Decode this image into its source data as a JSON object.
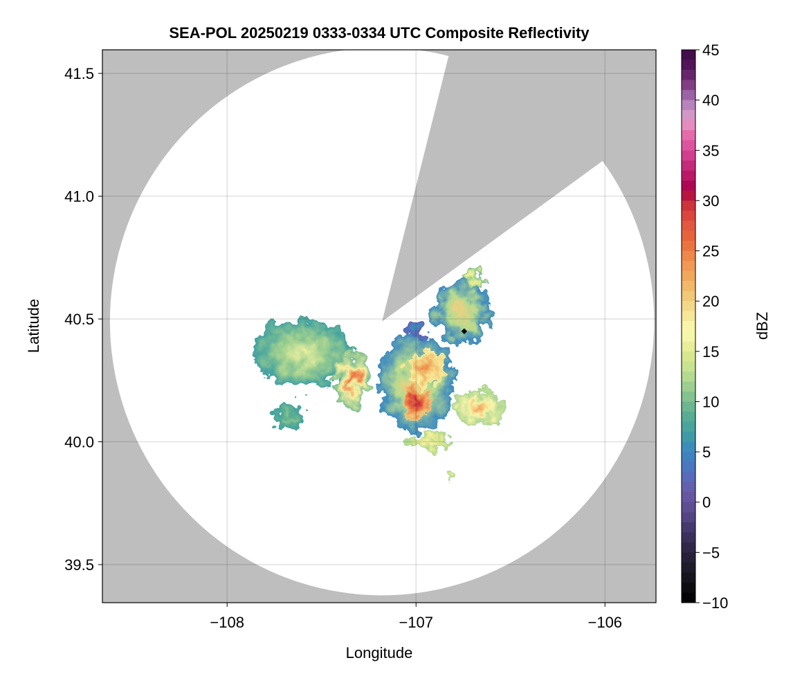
{
  "chart_data": {
    "type": "heatmap",
    "title": "SEA-POL 20250219 0333-0334 UTC Composite Reflectivity",
    "xlabel": "Longitude",
    "ylabel": "Latitude",
    "xlim": [
      -108.66,
      -105.73
    ],
    "ylim": [
      39.345,
      41.596
    ],
    "xticks": [
      -108,
      -107,
      -106
    ],
    "xtick_labels": [
      "−108",
      "−107",
      "−106"
    ],
    "yticks": [
      39.5,
      40.0,
      40.5,
      41.0,
      41.5
    ],
    "ytick_labels": [
      "39.5",
      "40.0",
      "40.5",
      "41.0",
      "41.5"
    ],
    "grid": true,
    "background_color": "#bebebe",
    "colorbar": {
      "label": "dBZ",
      "range": [
        -10,
        45
      ],
      "ticks": [
        -10,
        -5,
        0,
        5,
        10,
        15,
        20,
        25,
        30,
        35,
        40,
        45
      ],
      "tick_labels": [
        "−10",
        "−5",
        "0",
        "5",
        "10",
        "15",
        "20",
        "25",
        "30",
        "35",
        "40",
        "45"
      ],
      "stops": [
        [
          -10,
          "#000000"
        ],
        [
          -7,
          "#1a1822"
        ],
        [
          -5,
          "#2a2440"
        ],
        [
          -3,
          "#3e3464"
        ],
        [
          -1,
          "#5a4a8a"
        ],
        [
          1,
          "#6a5aa8"
        ],
        [
          3,
          "#5070c0"
        ],
        [
          5,
          "#3a88c0"
        ],
        [
          7,
          "#40a0a0"
        ],
        [
          9,
          "#60b090"
        ],
        [
          11,
          "#90c890"
        ],
        [
          13,
          "#c0e090"
        ],
        [
          15,
          "#e0e890"
        ],
        [
          17,
          "#fafab0"
        ],
        [
          18,
          "#f8f0a0"
        ],
        [
          20,
          "#f0d080"
        ],
        [
          22,
          "#f0b060"
        ],
        [
          24,
          "#f09050"
        ],
        [
          26,
          "#e86a3a"
        ],
        [
          28,
          "#e05040"
        ],
        [
          30,
          "#c82838"
        ],
        [
          31,
          "#a8004a"
        ],
        [
          33,
          "#c02070"
        ],
        [
          35,
          "#d84898"
        ],
        [
          37,
          "#e878b0"
        ],
        [
          38,
          "#e0a0cc"
        ],
        [
          40,
          "#a879b6"
        ],
        [
          41,
          "#8e4a92"
        ],
        [
          43,
          "#5a1a5e"
        ],
        [
          45,
          "#3b0a45"
        ]
      ]
    },
    "radar_location": {
      "lon": -107.18,
      "lat": 40.49
    },
    "coverage_radius_deg": {
      "lon": 1.44,
      "lat": 1.115
    },
    "blocked_sector_edges": [
      {
        "lon": -106.844,
        "lat": 41.52
      },
      {
        "lon": -106.058,
        "lat": 41.118
      }
    ],
    "marker": {
      "lon": -106.745,
      "lat": 40.45,
      "shape": "diamond",
      "color": "#000000"
    },
    "echo_cells": [
      {
        "lon": -107.6,
        "lat": 40.36,
        "rx": 0.26,
        "ry": 0.14,
        "edge_dbz": 7,
        "peak_dbz": 16
      },
      {
        "lon": -107.68,
        "lat": 40.1,
        "rx": 0.08,
        "ry": 0.05,
        "edge_dbz": 7,
        "peak_dbz": 11
      },
      {
        "lon": -107.34,
        "lat": 40.25,
        "rx": 0.09,
        "ry": 0.13,
        "edge_dbz": 10,
        "peak_dbz": 26
      },
      {
        "lon": -107.0,
        "lat": 40.24,
        "rx": 0.2,
        "ry": 0.2,
        "edge_dbz": 5,
        "peak_dbz": 20
      },
      {
        "lon": -106.95,
        "lat": 40.3,
        "rx": 0.1,
        "ry": 0.07,
        "edge_dbz": 18,
        "peak_dbz": 25
      },
      {
        "lon": -106.99,
        "lat": 40.16,
        "rx": 0.07,
        "ry": 0.07,
        "edge_dbz": 20,
        "peak_dbz": 30
      },
      {
        "lon": -106.76,
        "lat": 40.53,
        "rx": 0.15,
        "ry": 0.13,
        "edge_dbz": 5,
        "peak_dbz": 20
      },
      {
        "lon": -107.01,
        "lat": 40.46,
        "rx": 0.05,
        "ry": 0.03,
        "edge_dbz": 1,
        "peak_dbz": 6
      },
      {
        "lon": -106.67,
        "lat": 40.14,
        "rx": 0.14,
        "ry": 0.07,
        "edge_dbz": 12,
        "peak_dbz": 23
      },
      {
        "lon": -106.93,
        "lat": 40.0,
        "rx": 0.12,
        "ry": 0.03,
        "edge_dbz": 12,
        "peak_dbz": 18
      },
      {
        "lon": -106.82,
        "lat": 39.86,
        "rx": 0.03,
        "ry": 0.03,
        "edge_dbz": 12,
        "peak_dbz": 16
      },
      {
        "lon": -106.7,
        "lat": 40.66,
        "rx": 0.05,
        "ry": 0.03,
        "edge_dbz": 10,
        "peak_dbz": 18
      }
    ]
  }
}
